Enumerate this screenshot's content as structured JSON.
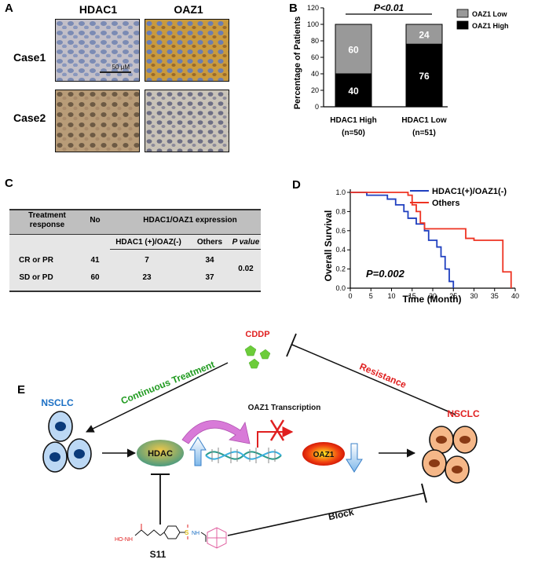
{
  "panels": {
    "a": "A",
    "b": "B",
    "c": "C",
    "d": "D",
    "e": "E"
  },
  "panel_a": {
    "col1": "HDAC1",
    "col2": "OAZ1",
    "row1": "Case1",
    "row2": "Case2",
    "scale": "50 μM"
  },
  "table_c": {
    "col_response": "Treatment response",
    "col_no": "No",
    "group": "HDAC1/OAZ1 expression",
    "sub1": "HDAC1 (+)/OAZ(-)",
    "sub2": "Others",
    "sub3": "P value",
    "rows": [
      {
        "response": "CR or PR",
        "no": "41",
        "hdac": "7",
        "others": "34"
      },
      {
        "response": "SD or PD",
        "no": "60",
        "hdac": "23",
        "others": "37"
      }
    ],
    "pvalue": "0.02"
  },
  "diagram_e": {
    "cddp": "CDDP",
    "continuous": "Continuous Treatment",
    "resistance": "Resistance",
    "nsclc_left": "NSCLC",
    "nsclc_right": "NSCLC",
    "transcription": "OAZ1 Transcription",
    "hdac": "HDAC",
    "oaz1": "OAZ1",
    "block": "Block",
    "s11": "S11",
    "mol_hoh": "HO-NH",
    "mol_s": "S",
    "mol_nh": "NH"
  },
  "colors": {
    "high": "#000000",
    "low": "#999999",
    "km_blue": "#1f3fbf",
    "km_red": "#ee3322",
    "green_text": "#1f9a1f",
    "red_text": "#e02020",
    "blue_text": "#1a6fc4"
  },
  "chart_data": [
    {
      "type": "bar",
      "stacked": true,
      "ylabel": "Percentage of Patients",
      "ylim": [
        0,
        120
      ],
      "yticks": [
        0,
        20,
        40,
        60,
        80,
        100,
        120
      ],
      "categories": [
        "HDAC1 High",
        "HDAC1 Low"
      ],
      "category_sublabels": [
        "(n=50)",
        "(n=51)"
      ],
      "series": [
        {
          "name": "OAZ1 High",
          "values": [
            40,
            76
          ]
        },
        {
          "name": "OAZ1 Low",
          "values": [
            60,
            24
          ]
        }
      ],
      "annotation": "P<0.01",
      "legend": "top-right"
    },
    {
      "type": "line",
      "xlabel": "Time (Month)",
      "ylabel": "Overall Survival",
      "xlim": [
        0,
        40
      ],
      "ylim": [
        0,
        1.0
      ],
      "xticks": [
        0,
        5,
        10,
        15,
        20,
        25,
        30,
        35,
        40
      ],
      "yticks": [
        0.0,
        0.2,
        0.4,
        0.6,
        0.8,
        1.0
      ],
      "annotation": "P=0.002",
      "legend": "top-right",
      "series": [
        {
          "name": "HDAC1(+)/OAZ1(-)",
          "x": [
            0,
            4,
            9,
            11,
            13,
            14,
            16,
            18,
            19,
            21,
            22,
            23,
            24,
            25
          ],
          "y": [
            1.0,
            0.97,
            0.93,
            0.87,
            0.8,
            0.73,
            0.67,
            0.6,
            0.5,
            0.43,
            0.33,
            0.2,
            0.07,
            0.0
          ]
        },
        {
          "name": "Others",
          "x": [
            0,
            14,
            15,
            16,
            17,
            18,
            27,
            28,
            30,
            35,
            37,
            39
          ],
          "y": [
            1.0,
            0.97,
            0.87,
            0.8,
            0.68,
            0.62,
            0.62,
            0.52,
            0.5,
            0.5,
            0.17,
            0.0
          ]
        }
      ]
    }
  ]
}
